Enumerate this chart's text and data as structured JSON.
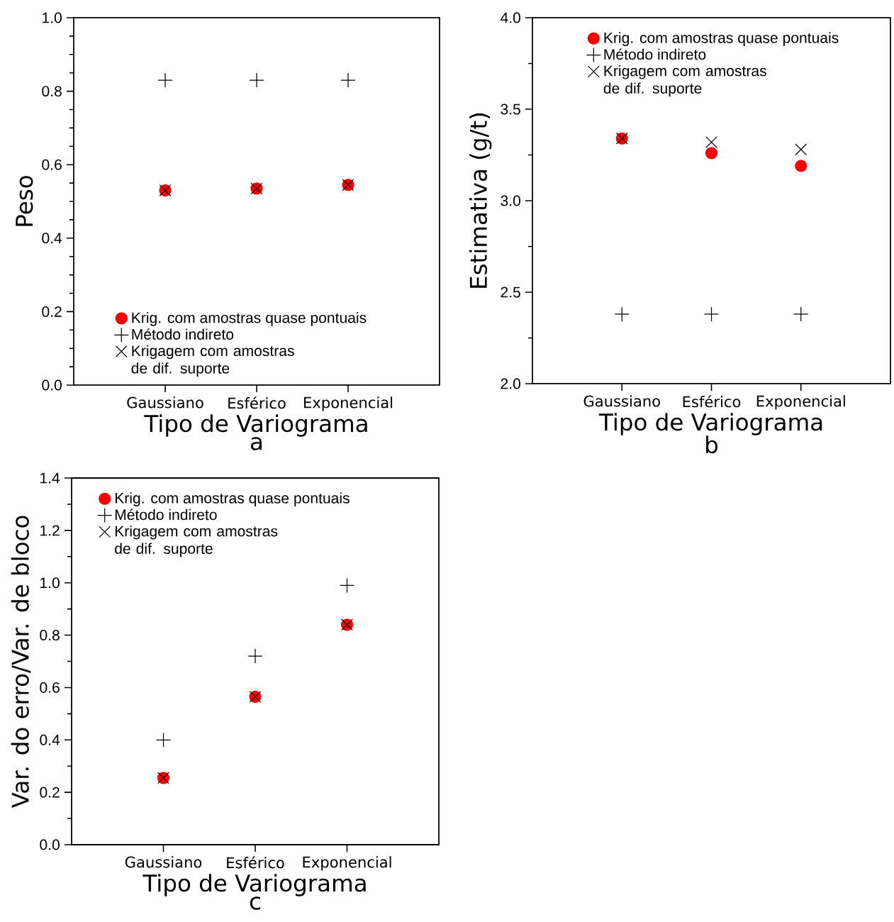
{
  "chart_data": [
    {
      "type": "scatter",
      "title": "a",
      "xlabel": "Tipo de Variograma",
      "ylabel": "Peso",
      "categories": [
        "Gaussiano",
        "Esférico",
        "Exponencial"
      ],
      "ylim": [
        0,
        1
      ],
      "yticks": [
        {
          "value": 0,
          "label": "0.0"
        },
        0.2,
        0.4,
        0.6,
        0.8,
        {
          "value": 1,
          "label": "1.0"
        }
      ],
      "legend": "bottom left",
      "series": [
        {
          "name": "Krig. com amostras quase pontuais",
          "color": "#ff0000",
          "marker": "circle",
          "values": [
            0.53,
            0.535,
            0.545
          ]
        },
        {
          "name": "Método indireto",
          "color": "#000000",
          "marker": "cross",
          "values": [
            0.83,
            0.83,
            0.83
          ]
        },
        {
          "name": "Krigagem com amostras de dif. suporte",
          "color": "#000000",
          "values": [
            0.53,
            0.535,
            0.545
          ]
        }
      ]
    },
    {
      "type": "scatter",
      "title": "b",
      "xlabel": "Tipo de Variograma",
      "ylabel": "Estimativa (g/t)",
      "categories": [
        "Gaussiano",
        "Esférico",
        "Exponencial"
      ],
      "ylim": [
        2,
        4
      ],
      "yticks": [
        {
          "value": 2,
          "label": "2.0"
        },
        2.5,
        {
          "value": 3,
          "label": "3.0"
        },
        3.5,
        {
          "value": 4,
          "label": "4.0"
        }
      ],
      "legend": "top",
      "series": [
        {
          "name": "Krig. com amostras quase pontuais",
          "color": "#ff0000",
          "marker": "circle",
          "values": [
            3.34,
            3.26,
            3.19
          ]
        },
        {
          "name": "Método indireto",
          "color": "#000000",
          "marker": "cross",
          "values": [
            2.38,
            2.38,
            2.38
          ]
        },
        {
          "name": "Krigagem com amostras de dif. suporte",
          "color": "#000000",
          "values": [
            3.34,
            3.32,
            3.28
          ]
        }
      ]
    },
    {
      "type": "scatter",
      "title": "c",
      "xlabel": "Tipo de Variograma",
      "ylabel": "Var. do erro/Var. de bloco",
      "categories": [
        "Gaussiano",
        "Esférico",
        "Exponencial"
      ],
      "ylim": [
        0,
        1.4
      ],
      "yticks": [
        {
          "value": 0,
          "label": "0.0"
        },
        0.2,
        0.4,
        0.6,
        0.8,
        {
          "value": 1,
          "label": "1.0"
        },
        1.2,
        1.4
      ],
      "legend": "top left",
      "series": [
        {
          "name": "Krig. com amostras quase pontuais",
          "color": "#ff0000",
          "marker": "circle",
          "values": [
            0.255,
            0.565,
            0.84
          ]
        },
        {
          "name": "Método indireto",
          "color": "#000000",
          "marker": "cross",
          "values": [
            0.4,
            0.72,
            0.99
          ]
        },
        {
          "name": "Krigagem com amostras de dif. suporte",
          "color": "#000000",
          "values": [
            0.255,
            0.565,
            0.84
          ]
        }
      ]
    }
  ]
}
